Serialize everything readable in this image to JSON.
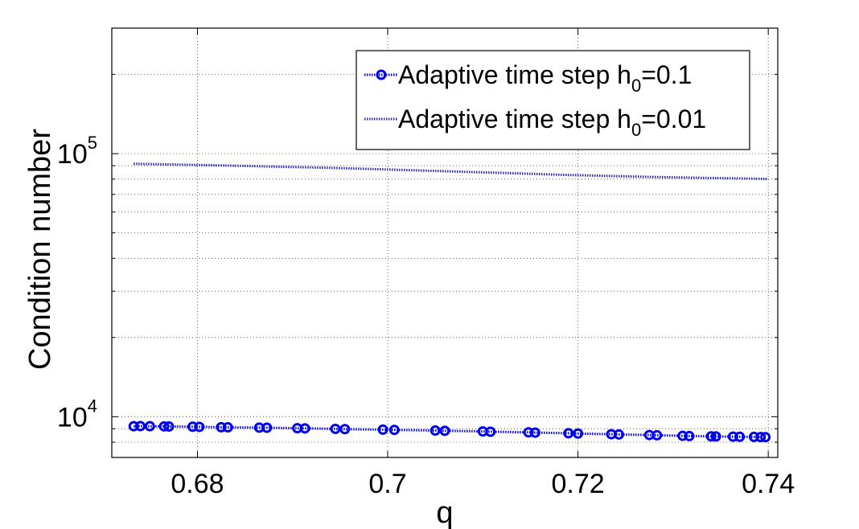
{
  "chart_data": {
    "type": "line",
    "xlabel": "q",
    "ylabel": "Condition number",
    "xlim": [
      0.671,
      0.741
    ],
    "ylim": [
      7000,
      300000
    ],
    "y_scale": "log",
    "grid": true,
    "legend_position": "top-right",
    "x_ticks": [
      {
        "value": 0.68,
        "label": "0.68"
      },
      {
        "value": 0.7,
        "label": "0.7"
      },
      {
        "value": 0.72,
        "label": "0.72"
      },
      {
        "value": 0.74,
        "label": "0.74"
      }
    ],
    "y_ticks": [
      {
        "value": 10000,
        "base": "10",
        "exp": "4"
      },
      {
        "value": 100000,
        "base": "10",
        "exp": "5"
      }
    ],
    "series": [
      {
        "name_prefix": "Adaptive time step h",
        "name_sub": "0",
        "name_suffix": "=0.1",
        "color": "#0000ee",
        "marker": "circle",
        "line_style": "dotted",
        "x": [
          0.6733,
          0.674,
          0.675,
          0.6765,
          0.677,
          0.6795,
          0.6802,
          0.6825,
          0.6832,
          0.6865,
          0.6873,
          0.6905,
          0.6913,
          0.6945,
          0.6955,
          0.6995,
          0.7007,
          0.705,
          0.706,
          0.71,
          0.7108,
          0.7148,
          0.7155,
          0.719,
          0.72,
          0.7235,
          0.7243,
          0.7275,
          0.7283,
          0.731,
          0.7317,
          0.734,
          0.7345,
          0.7363,
          0.737,
          0.7385,
          0.7392,
          0.7397
        ],
        "y": [
          9200,
          9210,
          9200,
          9190,
          9180,
          9160,
          9150,
          9120,
          9110,
          9090,
          9080,
          9040,
          9030,
          8990,
          8970,
          8930,
          8910,
          8860,
          8840,
          8790,
          8770,
          8720,
          8700,
          8650,
          8630,
          8580,
          8560,
          8520,
          8500,
          8460,
          8440,
          8420,
          8410,
          8400,
          8390,
          8380,
          8370,
          8360
        ]
      },
      {
        "name_prefix": "Adaptive time step h",
        "name_sub": "0",
        "name_suffix": "=0.01",
        "color": "#2a2ab8",
        "marker": "none",
        "line_style": "dotted",
        "x": [
          0.6733,
          0.678,
          0.683,
          0.688,
          0.693,
          0.698,
          0.703,
          0.708,
          0.713,
          0.718,
          0.723,
          0.728,
          0.733,
          0.738,
          0.74
        ],
        "y": [
          91500,
          90800,
          90100,
          89300,
          88500,
          87500,
          86400,
          85300,
          84300,
          83200,
          82300,
          81500,
          80900,
          80400,
          80100
        ]
      }
    ]
  }
}
